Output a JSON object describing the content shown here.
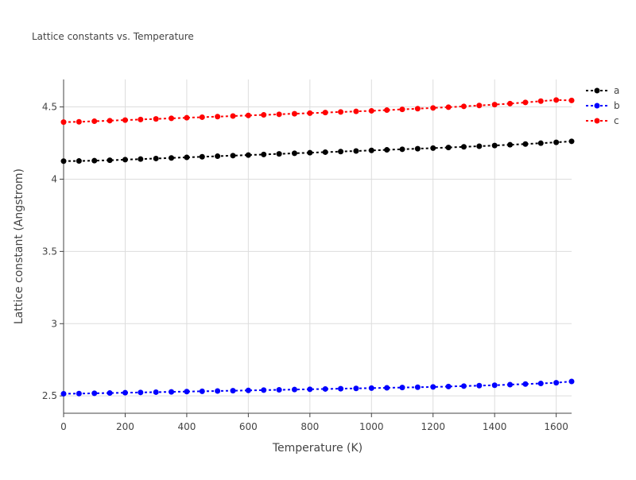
{
  "chart_data": {
    "type": "line",
    "title": "Lattice constants vs. Temperature",
    "xlabel": "Temperature (K)",
    "ylabel": "Lattice constant (Angstrom)",
    "xlim": [
      0,
      1650
    ],
    "ylim": [
      2.38,
      4.69
    ],
    "xticks": [
      0,
      200,
      400,
      600,
      800,
      1000,
      1200,
      1400,
      1600
    ],
    "yticks": [
      2.5,
      3,
      3.5,
      4,
      4.5
    ],
    "xtick_labels": [
      "0",
      "200",
      "400",
      "600",
      "800",
      "1000",
      "1200",
      "1400",
      "1600"
    ],
    "ytick_labels": [
      "2.5",
      "3",
      "3.5",
      "4",
      "4.5"
    ],
    "grid": true,
    "legend_position": "top-right",
    "x": [
      0,
      50,
      100,
      150,
      200,
      250,
      300,
      350,
      400,
      450,
      500,
      550,
      600,
      650,
      700,
      750,
      800,
      850,
      900,
      950,
      1000,
      1050,
      1100,
      1150,
      1200,
      1250,
      1300,
      1350,
      1400,
      1450,
      1500,
      1550,
      1600,
      1650
    ],
    "series": [
      {
        "name": "a",
        "color": "#000000",
        "values": [
          4.125,
          4.126,
          4.128,
          4.131,
          4.135,
          4.139,
          4.143,
          4.147,
          4.151,
          4.155,
          4.159,
          4.163,
          4.167,
          4.171,
          4.175,
          4.179,
          4.183,
          4.187,
          4.191,
          4.195,
          4.199,
          4.203,
          4.207,
          4.211,
          4.215,
          4.219,
          4.224,
          4.228,
          4.233,
          4.238,
          4.243,
          4.249,
          4.255,
          4.262
        ]
      },
      {
        "name": "b",
        "color": "#0000ff",
        "values": [
          2.515,
          2.516,
          2.518,
          2.52,
          2.522,
          2.524,
          2.526,
          2.528,
          2.53,
          2.532,
          2.534,
          2.536,
          2.538,
          2.54,
          2.542,
          2.544,
          2.546,
          2.548,
          2.55,
          2.552,
          2.554,
          2.556,
          2.558,
          2.56,
          2.562,
          2.565,
          2.568,
          2.571,
          2.574,
          2.578,
          2.582,
          2.586,
          2.591,
          2.6
        ]
      },
      {
        "name": "c",
        "color": "#ff0000",
        "values": [
          4.395,
          4.397,
          4.401,
          4.405,
          4.409,
          4.413,
          4.417,
          4.421,
          4.425,
          4.429,
          4.433,
          4.437,
          4.441,
          4.445,
          4.449,
          4.453,
          4.457,
          4.461,
          4.465,
          4.469,
          4.473,
          4.478,
          4.483,
          4.488,
          4.493,
          4.498,
          4.504,
          4.51,
          4.516,
          4.523,
          4.531,
          4.54,
          4.548,
          4.545
        ]
      }
    ]
  }
}
